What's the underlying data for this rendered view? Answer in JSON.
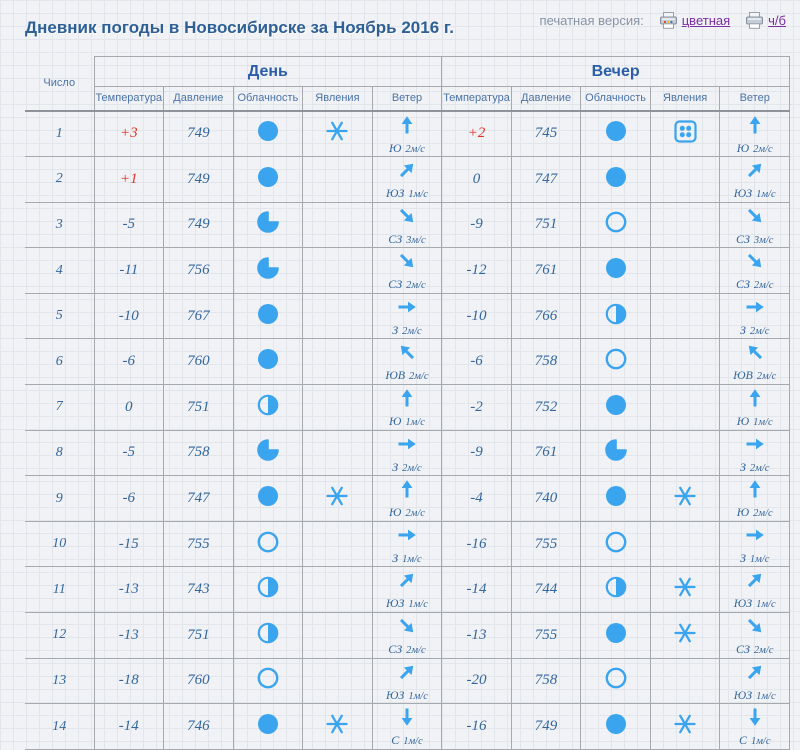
{
  "header": {
    "title": "Дневник погоды в Новосибирске за Ноябрь 2016 г.",
    "print_label": "печатная версия:",
    "color_link": "цветная",
    "bw_link": "ч/б"
  },
  "colors": {
    "icon_blue": "#3BA4EE",
    "text_blue": "#33679d",
    "temp_positive_red": "#e0312a",
    "title_blue": "#2e6095",
    "link_purple": "#7a2fa2"
  },
  "table": {
    "date_header": "Число",
    "group_headers": [
      "День",
      "Вечер"
    ],
    "columns": [
      "Температура",
      "Давление",
      "Облачность",
      "Явления",
      "Ветер"
    ],
    "rows": [
      {
        "date": "1",
        "day": {
          "temp": "+3",
          "pressure": "749",
          "cloud": "full",
          "phenomena": "snowflake",
          "wind_dir": "Ю",
          "wind_speed": "2м/с",
          "arrow": "up"
        },
        "evening": {
          "temp": "+2",
          "pressure": "745",
          "cloud": "full",
          "phenomena": "dots",
          "wind_dir": "Ю",
          "wind_speed": "2м/с",
          "arrow": "up"
        }
      },
      {
        "date": "2",
        "day": {
          "temp": "+1",
          "pressure": "749",
          "cloud": "full",
          "phenomena": "",
          "wind_dir": "ЮЗ",
          "wind_speed": "1м/с",
          "arrow": "up-right"
        },
        "evening": {
          "temp": "0",
          "pressure": "747",
          "cloud": "full",
          "phenomena": "",
          "wind_dir": "ЮЗ",
          "wind_speed": "1м/с",
          "arrow": "up-right"
        }
      },
      {
        "date": "3",
        "day": {
          "temp": "-5",
          "pressure": "749",
          "cloud": "three-quarters",
          "phenomena": "",
          "wind_dir": "СЗ",
          "wind_speed": "3м/с",
          "arrow": "down-right"
        },
        "evening": {
          "temp": "-9",
          "pressure": "751",
          "cloud": "clear",
          "phenomena": "",
          "wind_dir": "СЗ",
          "wind_speed": "3м/с",
          "arrow": "down-right"
        }
      },
      {
        "date": "4",
        "day": {
          "temp": "-11",
          "pressure": "756",
          "cloud": "three-quarters",
          "phenomena": "",
          "wind_dir": "СЗ",
          "wind_speed": "2м/с",
          "arrow": "down-right"
        },
        "evening": {
          "temp": "-12",
          "pressure": "761",
          "cloud": "full",
          "phenomena": "",
          "wind_dir": "СЗ",
          "wind_speed": "2м/с",
          "arrow": "down-right"
        }
      },
      {
        "date": "5",
        "day": {
          "temp": "-10",
          "pressure": "767",
          "cloud": "full",
          "phenomena": "",
          "wind_dir": "З",
          "wind_speed": "2м/с",
          "arrow": "right"
        },
        "evening": {
          "temp": "-10",
          "pressure": "766",
          "cloud": "half",
          "phenomena": "",
          "wind_dir": "З",
          "wind_speed": "2м/с",
          "arrow": "right"
        }
      },
      {
        "date": "6",
        "day": {
          "temp": "-6",
          "pressure": "760",
          "cloud": "full",
          "phenomena": "",
          "wind_dir": "ЮВ",
          "wind_speed": "2м/с",
          "arrow": "up-left"
        },
        "evening": {
          "temp": "-6",
          "pressure": "758",
          "cloud": "clear",
          "phenomena": "",
          "wind_dir": "ЮВ",
          "wind_speed": "2м/с",
          "arrow": "up-left"
        }
      },
      {
        "date": "7",
        "day": {
          "temp": "0",
          "pressure": "751",
          "cloud": "half",
          "phenomena": "",
          "wind_dir": "Ю",
          "wind_speed": "1м/с",
          "arrow": "up"
        },
        "evening": {
          "temp": "-2",
          "pressure": "752",
          "cloud": "full",
          "phenomena": "",
          "wind_dir": "Ю",
          "wind_speed": "1м/с",
          "arrow": "up"
        }
      },
      {
        "date": "8",
        "day": {
          "temp": "-5",
          "pressure": "758",
          "cloud": "three-quarters",
          "phenomena": "",
          "wind_dir": "З",
          "wind_speed": "2м/с",
          "arrow": "right"
        },
        "evening": {
          "temp": "-9",
          "pressure": "761",
          "cloud": "three-quarters",
          "phenomena": "",
          "wind_dir": "З",
          "wind_speed": "2м/с",
          "arrow": "right"
        }
      },
      {
        "date": "9",
        "day": {
          "temp": "-6",
          "pressure": "747",
          "cloud": "full",
          "phenomena": "snowflake",
          "wind_dir": "Ю",
          "wind_speed": "2м/с",
          "arrow": "up"
        },
        "evening": {
          "temp": "-4",
          "pressure": "740",
          "cloud": "full",
          "phenomena": "snowflake",
          "wind_dir": "Ю",
          "wind_speed": "2м/с",
          "arrow": "up"
        }
      },
      {
        "date": "10",
        "day": {
          "temp": "-15",
          "pressure": "755",
          "cloud": "clear",
          "phenomena": "",
          "wind_dir": "З",
          "wind_speed": "1м/с",
          "arrow": "right"
        },
        "evening": {
          "temp": "-16",
          "pressure": "755",
          "cloud": "clear",
          "phenomena": "",
          "wind_dir": "З",
          "wind_speed": "1м/с",
          "arrow": "right"
        }
      },
      {
        "date": "11",
        "day": {
          "temp": "-13",
          "pressure": "743",
          "cloud": "half",
          "phenomena": "",
          "wind_dir": "ЮЗ",
          "wind_speed": "1м/с",
          "arrow": "up-right"
        },
        "evening": {
          "temp": "-14",
          "pressure": "744",
          "cloud": "half",
          "phenomena": "snowflake",
          "wind_dir": "ЮЗ",
          "wind_speed": "1м/с",
          "arrow": "up-right"
        }
      },
      {
        "date": "12",
        "day": {
          "temp": "-13",
          "pressure": "751",
          "cloud": "half",
          "phenomena": "",
          "wind_dir": "СЗ",
          "wind_speed": "2м/с",
          "arrow": "down-right"
        },
        "evening": {
          "temp": "-13",
          "pressure": "755",
          "cloud": "full",
          "phenomena": "snowflake",
          "wind_dir": "СЗ",
          "wind_speed": "2м/с",
          "arrow": "down-right"
        }
      },
      {
        "date": "13",
        "day": {
          "temp": "-18",
          "pressure": "760",
          "cloud": "clear",
          "phenomena": "",
          "wind_dir": "ЮЗ",
          "wind_speed": "1м/с",
          "arrow": "up-right"
        },
        "evening": {
          "temp": "-20",
          "pressure": "758",
          "cloud": "clear",
          "phenomena": "",
          "wind_dir": "ЮЗ",
          "wind_speed": "1м/с",
          "arrow": "up-right"
        }
      },
      {
        "date": "14",
        "day": {
          "temp": "-14",
          "pressure": "746",
          "cloud": "full",
          "phenomena": "snowflake",
          "wind_dir": "С",
          "wind_speed": "1м/с",
          "arrow": "down"
        },
        "evening": {
          "temp": "-16",
          "pressure": "749",
          "cloud": "full",
          "phenomena": "snowflake",
          "wind_dir": "С",
          "wind_speed": "1м/с",
          "arrow": "down"
        }
      }
    ]
  }
}
